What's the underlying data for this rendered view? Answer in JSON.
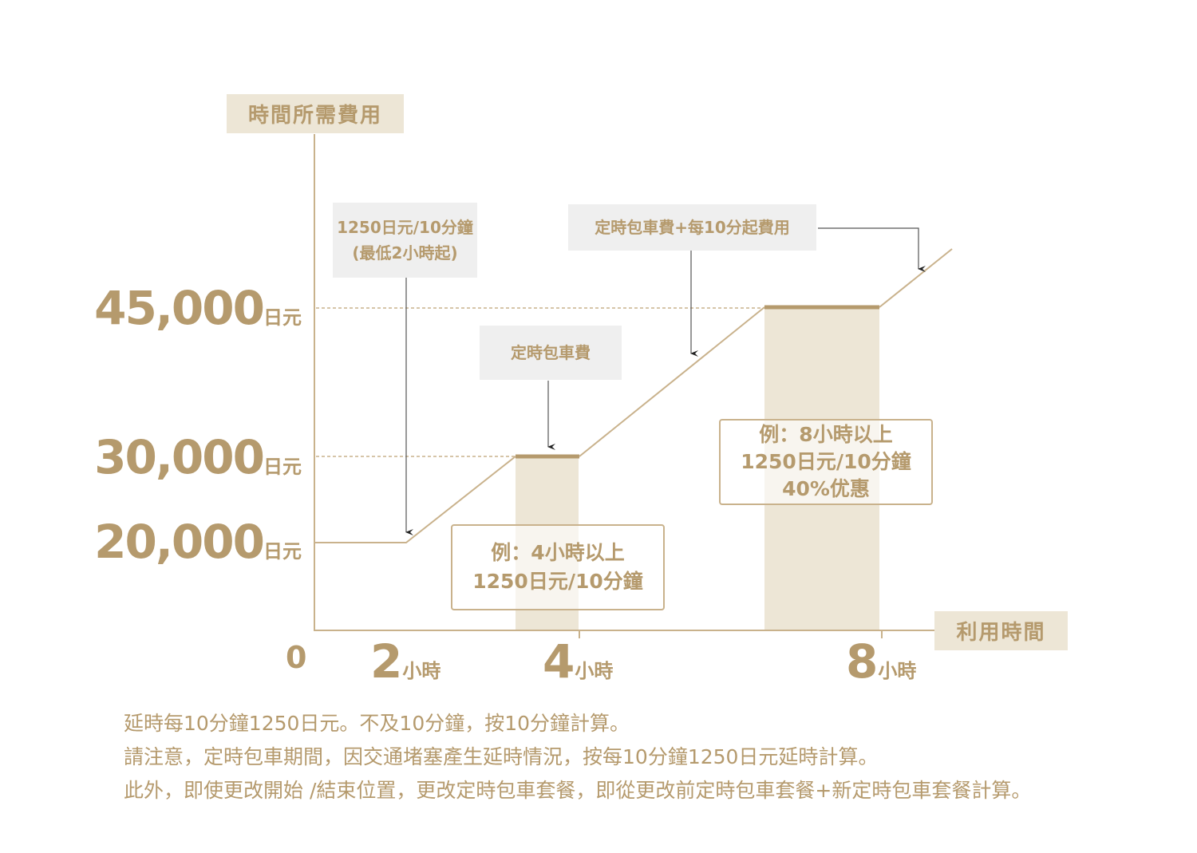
{
  "axes": {
    "y_title": "時間所需費用",
    "x_title": "利用時間",
    "origin": "0",
    "y_ticks": [
      {
        "value": "45,000",
        "unit": "日元"
      },
      {
        "value": "30,000",
        "unit": "日元"
      },
      {
        "value": "20,000",
        "unit": "日元"
      }
    ],
    "x_ticks": [
      {
        "value": "2",
        "unit": "小時"
      },
      {
        "value": "4",
        "unit": "小時"
      },
      {
        "value": "8",
        "unit": "小時"
      }
    ]
  },
  "callouts": {
    "min_rate_line1": "1250日元/10分鐘",
    "min_rate_line2": "(最低2小時起)",
    "package_fee": "定時包車費",
    "package_plus": "定時包車費+每10分起費用"
  },
  "examples": {
    "four_hours": {
      "line1": "例：4小時以上",
      "line2": "1250日元/10分鐘"
    },
    "eight_hours": {
      "line1": "例：8小時以上",
      "line2": "1250日元/10分鐘",
      "line3": "40%优惠"
    }
  },
  "notes": [
    "延時每10分鐘1250日元。不及10分鐘，按10分鐘計算。",
    "請注意，定時包車期間，因交通堵塞產生延時情況，按每10分鐘1250日元延時計算。",
    "此外，即使更改開始 /結束位置，更改定時包車套餐，即從更改前定時包車套餐+新定時包車套餐計算。"
  ],
  "colors": {
    "accent": "#b59a6d",
    "bar_fill": "#ede6d6",
    "callout_bg": "#efefef"
  }
}
